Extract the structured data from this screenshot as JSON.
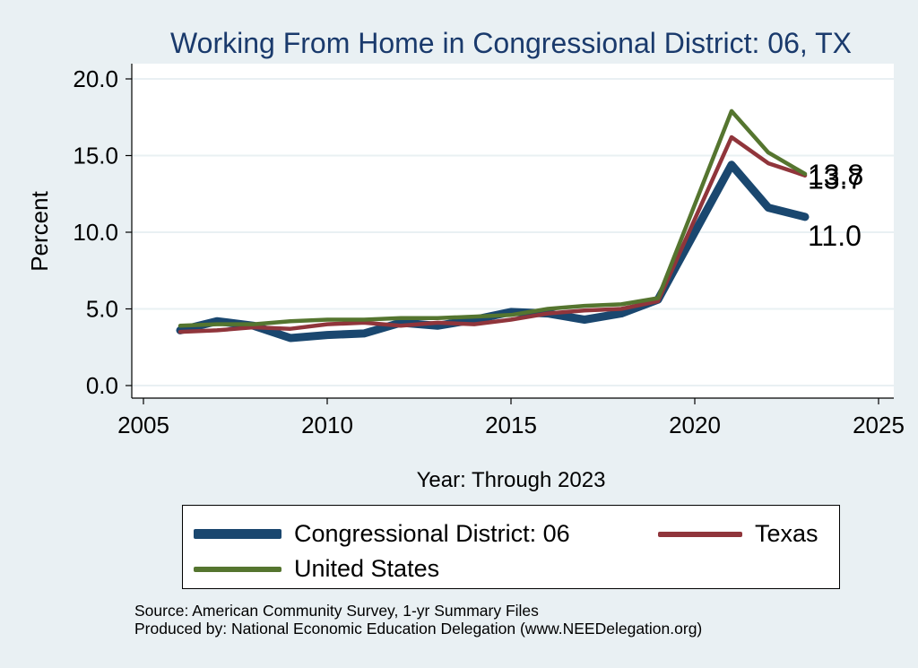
{
  "chart_data": {
    "type": "line",
    "title": "Working From Home in Congressional District: 06, TX",
    "xlabel": "Year: Through 2023",
    "ylabel": "Percent",
    "xlim": [
      2005,
      2025
    ],
    "ylim": [
      0,
      20
    ],
    "xticks": [
      2005,
      2010,
      2015,
      2020,
      2025
    ],
    "yticks": [
      0,
      5,
      10,
      15,
      20
    ],
    "ytick_labels": [
      "0.0",
      "5.0",
      "10.0",
      "15.0",
      "20.0"
    ],
    "grid": true,
    "legend_position": "bottom",
    "x": [
      2006,
      2007,
      2008,
      2009,
      2010,
      2011,
      2012,
      2013,
      2014,
      2015,
      2016,
      2017,
      2018,
      2019,
      2021,
      2022,
      2023
    ],
    "series": [
      {
        "name": "Congressional District: 06",
        "color": "#1a476f",
        "values": [
          3.6,
          4.2,
          3.9,
          3.1,
          3.3,
          3.4,
          4.1,
          3.9,
          4.3,
          4.8,
          4.7,
          4.3,
          4.7,
          5.6,
          14.4,
          11.6,
          11.0
        ],
        "end_label": "11.0"
      },
      {
        "name": "Texas",
        "color": "#90353b",
        "values": [
          3.5,
          3.6,
          3.8,
          3.7,
          4.0,
          4.1,
          3.9,
          4.1,
          4.0,
          4.3,
          4.7,
          4.9,
          5.0,
          5.5,
          16.2,
          14.5,
          13.7
        ],
        "end_label": "13.7"
      },
      {
        "name": "United States",
        "color": "#55752f",
        "values": [
          3.9,
          4.0,
          4.0,
          4.2,
          4.3,
          4.3,
          4.4,
          4.4,
          4.5,
          4.6,
          5.0,
          5.2,
          5.3,
          5.7,
          17.9,
          15.2,
          13.8
        ],
        "end_label": "13.8"
      }
    ]
  },
  "source_note": {
    "line1": "Source: American Community Survey, 1-yr Summary Files",
    "line2": "Produced by: National Economic Education Delegation (www.NEEDelegation.org)"
  }
}
